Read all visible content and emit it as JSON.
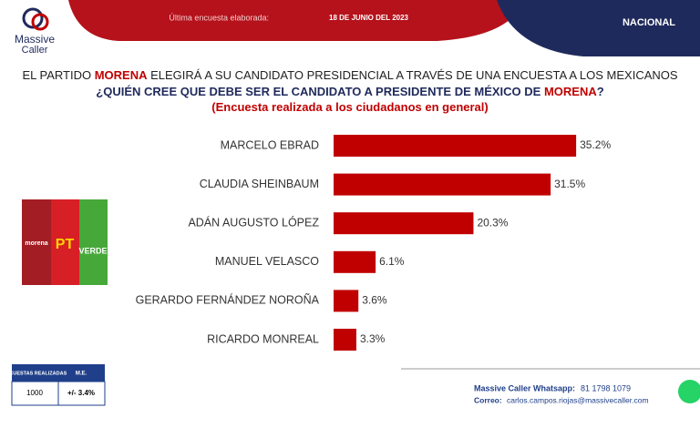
{
  "header": {
    "brand": "Massive",
    "brand_sub": "Caller",
    "survey_date_label": "Última encuesta elaborada:",
    "survey_date": "18 DE JUNIO DEL 2023",
    "scope": "NACIONAL"
  },
  "chart_data": {
    "type": "bar",
    "orientation": "horizontal",
    "title_parts": [
      "EL PARTIDO",
      "MORENA",
      "ELEGIRÁ A SU CANDIDATO PRESIDENCIAL A TRAVÉS DE UNA ENCUESTA A LOS MEXICANOS"
    ],
    "subtitle_parts": [
      "¿QUIÉN CREE QUE DEBE SER EL CANDIDATO A PRESIDENTE DE MÉXICO DE",
      "MORENA",
      "?"
    ],
    "note": "(Encuesta realizada a los ciudadanos en general)",
    "categories": [
      "MARCELO EBRAD",
      "CLAUDIA SHEINBAUM",
      "ADÁN AUGUSTO LÓPEZ",
      "MANUEL VELASCO",
      "GERARDO FERNÁNDEZ NOROÑA",
      "RICARDO MONREAL"
    ],
    "values": [
      35.2,
      31.5,
      20.3,
      6.1,
      3.6,
      3.3
    ],
    "value_labels": [
      "35.2%",
      "31.5%",
      "20.3%",
      "6.1%",
      "3.6%",
      "3.3%"
    ],
    "color": "#c00000"
  },
  "parties": [
    "morena",
    "PT",
    "VERDE"
  ],
  "survey_table": {
    "headers": [
      "ENCUESTAS REALIZADAS",
      "M.E."
    ],
    "rows": [
      [
        "1000",
        "+/- 3.4%"
      ]
    ]
  },
  "footer": {
    "whatsapp_label": "Massive Caller Whatsapp:",
    "whatsapp": "81 1798 1079",
    "email_label": "Correo:",
    "email": "carlos.campos.riojas@massivecaller.com"
  }
}
